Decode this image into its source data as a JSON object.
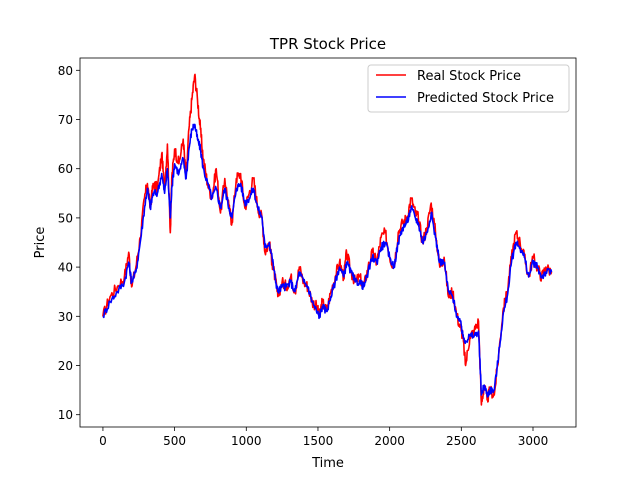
{
  "chart_data": {
    "type": "line",
    "title": "TPR Stock Price",
    "xlabel": "Time",
    "ylabel": "Price",
    "xlim": [
      -160,
      3300
    ],
    "ylim": [
      7.5,
      82.5
    ],
    "x_ticks": [
      0,
      500,
      1000,
      1500,
      2000,
      2500,
      3000
    ],
    "y_ticks": [
      10,
      20,
      30,
      40,
      50,
      60,
      70,
      80
    ],
    "legend_position": "top-right",
    "series": [
      {
        "name": "Real Stock Price",
        "color": "#ff0000",
        "x": [
          0,
          50,
          100,
          150,
          180,
          200,
          230,
          260,
          290,
          310,
          330,
          350,
          380,
          410,
          430,
          450,
          470,
          480,
          500,
          530,
          560,
          580,
          600,
          620,
          640,
          660,
          680,
          700,
          730,
          760,
          790,
          820,
          850,
          880,
          900,
          930,
          960,
          990,
          1020,
          1050,
          1080,
          1110,
          1130,
          1160,
          1180,
          1200,
          1220,
          1250,
          1280,
          1310,
          1340,
          1370,
          1400,
          1430,
          1460,
          1490,
          1510,
          1530,
          1560,
          1590,
          1620,
          1650,
          1680,
          1700,
          1730,
          1760,
          1790,
          1820,
          1850,
          1880,
          1910,
          1940,
          1970,
          2000,
          2030,
          2060,
          2090,
          2120,
          2150,
          2180,
          2200,
          2230,
          2260,
          2290,
          2320,
          2350,
          2380,
          2410,
          2440,
          2470,
          2500,
          2510,
          2530,
          2560,
          2590,
          2620,
          2640,
          2660,
          2680,
          2700,
          2730,
          2760,
          2790,
          2820,
          2850,
          2880,
          2910,
          2940,
          2970,
          3000,
          3030,
          3060,
          3090,
          3130
        ],
        "values": [
          30,
          34,
          36,
          38,
          43,
          36,
          40,
          46,
          54,
          57,
          52,
          57,
          56,
          63,
          56,
          65,
          47,
          58,
          64,
          61,
          66,
          58,
          68,
          74,
          79,
          74,
          68,
          62,
          57,
          54,
          60,
          51,
          58,
          52,
          49,
          58,
          59,
          52,
          55,
          58,
          52,
          50,
          43,
          45,
          41,
          38,
          34,
          37,
          36,
          38,
          35,
          40,
          37,
          36,
          33,
          32,
          30,
          33,
          31,
          35,
          38,
          41,
          38,
          43,
          39,
          37,
          38,
          36,
          40,
          43,
          41,
          46,
          47,
          42,
          40,
          47,
          49,
          50,
          54,
          51,
          50,
          45,
          48,
          53,
          47,
          40,
          42,
          34,
          35,
          30,
          27,
          26,
          20,
          26,
          27,
          29,
          12,
          16,
          13,
          15,
          14,
          22,
          31,
          35,
          42,
          47,
          45,
          42,
          38,
          42,
          40,
          38,
          40,
          39
        ],
        "values_note": null
      },
      {
        "name": "Predicted Stock Price",
        "color": "#0000ff",
        "x": [
          0,
          50,
          100,
          150,
          180,
          200,
          230,
          260,
          290,
          310,
          330,
          350,
          380,
          410,
          430,
          450,
          470,
          480,
          500,
          530,
          560,
          580,
          600,
          620,
          640,
          660,
          680,
          700,
          730,
          760,
          790,
          820,
          850,
          880,
          900,
          930,
          960,
          990,
          1020,
          1050,
          1080,
          1110,
          1130,
          1160,
          1180,
          1200,
          1220,
          1250,
          1280,
          1310,
          1340,
          1370,
          1400,
          1430,
          1460,
          1490,
          1510,
          1530,
          1560,
          1590,
          1620,
          1650,
          1680,
          1700,
          1730,
          1760,
          1790,
          1820,
          1850,
          1880,
          1910,
          1940,
          1970,
          2000,
          2030,
          2060,
          2090,
          2120,
          2150,
          2180,
          2200,
          2230,
          2260,
          2290,
          2320,
          2350,
          2380,
          2410,
          2440,
          2470,
          2500,
          2510,
          2530,
          2560,
          2590,
          2620,
          2640,
          2660,
          2680,
          2700,
          2730,
          2760,
          2790,
          2820,
          2850,
          2880,
          2910,
          2940,
          2970,
          3000,
          3030,
          3060,
          3090,
          3130
        ],
        "values": [
          30,
          33,
          35,
          37,
          41,
          37,
          39,
          45,
          52,
          56,
          52,
          55,
          55,
          59,
          55,
          60,
          50,
          56,
          61,
          59,
          62,
          58,
          64,
          68,
          69,
          66,
          64,
          60,
          57,
          54,
          56,
          52,
          56,
          52,
          50,
          56,
          57,
          53,
          54,
          56,
          52,
          50,
          44,
          45,
          42,
          38,
          35,
          36,
          36,
          37,
          35,
          39,
          37,
          36,
          33,
          31,
          30,
          32,
          31,
          34,
          37,
          40,
          38,
          41,
          39,
          37,
          37,
          36,
          39,
          42,
          41,
          44,
          45,
          42,
          40,
          45,
          48,
          49,
          52,
          50,
          49,
          45,
          47,
          51,
          46,
          41,
          41,
          35,
          34,
          30,
          28,
          26,
          25,
          26,
          26,
          27,
          14,
          16,
          14,
          15,
          15,
          22,
          30,
          34,
          41,
          45,
          44,
          42,
          38,
          41,
          40,
          38,
          39,
          39
        ]
      }
    ]
  }
}
